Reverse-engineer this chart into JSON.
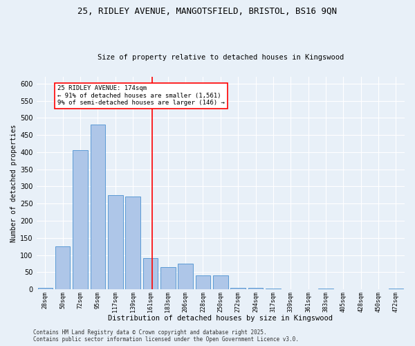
{
  "title_line1": "25, RIDLEY AVENUE, MANGOTSFIELD, BRISTOL, BS16 9QN",
  "title_line2": "Size of property relative to detached houses in Kingswood",
  "xlabel": "Distribution of detached houses by size in Kingswood",
  "ylabel": "Number of detached properties",
  "bar_labels": [
    "28sqm",
    "50sqm",
    "72sqm",
    "95sqm",
    "117sqm",
    "139sqm",
    "161sqm",
    "183sqm",
    "206sqm",
    "228sqm",
    "250sqm",
    "272sqm",
    "294sqm",
    "317sqm",
    "339sqm",
    "361sqm",
    "383sqm",
    "405sqm",
    "428sqm",
    "450sqm",
    "472sqm"
  ],
  "bar_values": [
    5,
    125,
    405,
    480,
    275,
    270,
    90,
    65,
    75,
    40,
    40,
    5,
    5,
    3,
    0,
    0,
    3,
    0,
    0,
    0,
    3
  ],
  "bar_color": "#aec6e8",
  "bar_edge_color": "#5b9bd5",
  "background_color": "#e8f0f8",
  "grid_color": "#ffffff",
  "annotation_line1": "25 RIDLEY AVENUE: 174sqm",
  "annotation_line2": "← 91% of detached houses are smaller (1,561)",
  "annotation_line3": "9% of semi-detached houses are larger (146) →",
  "ylim": [
    0,
    620
  ],
  "yticks": [
    0,
    50,
    100,
    150,
    200,
    250,
    300,
    350,
    400,
    450,
    500,
    550,
    600
  ],
  "footer_line1": "Contains HM Land Registry data © Crown copyright and database right 2025.",
  "footer_line2": "Contains public sector information licensed under the Open Government Licence v3.0."
}
